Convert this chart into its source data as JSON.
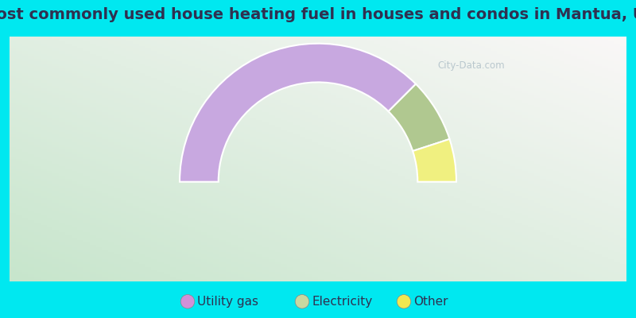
{
  "title": "Most commonly used house heating fuel in houses and condos in Mantua, UT",
  "segments": [
    {
      "label": "Utility gas",
      "value": 75.0,
      "color": "#c8a8e0"
    },
    {
      "label": "Electricity",
      "value": 15.0,
      "color": "#b0c890"
    },
    {
      "label": "Other",
      "value": 10.0,
      "color": "#f0f080"
    }
  ],
  "outer_bg_color": "#00e8f0",
  "title_color": "#303050",
  "title_fontsize": 14,
  "legend_fontsize": 11,
  "watermark_text": "City-Data.com",
  "watermark_color": "#b0c0c8",
  "donut_outer_r": 1.0,
  "donut_width": 0.28,
  "legend_marker_color_utility": "#d090d8",
  "legend_marker_color_electricity": "#c8d8a0",
  "legend_marker_color_other": "#f0e850"
}
